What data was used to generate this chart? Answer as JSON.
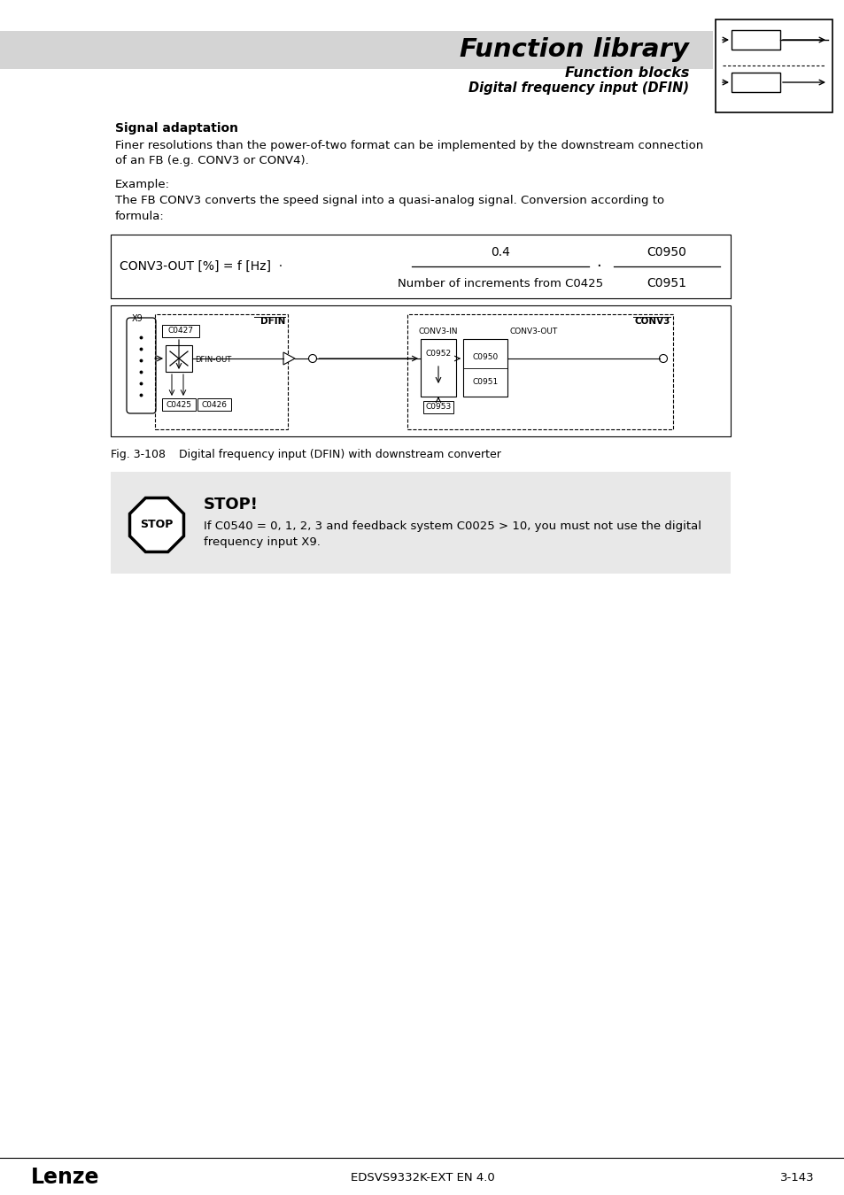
{
  "title": "Function library",
  "subtitle1": "Function blocks",
  "subtitle2": "Digital frequency input (DFIN)",
  "header_bg": "#d4d4d4",
  "page_bg": "#ffffff",
  "section_heading": "Signal adaptation",
  "para1": "Finer resolutions than the power-of-two format can be implemented by the downstream connection\nof an FB (e.g. CONV3 or CONV4).",
  "para2": "Example:",
  "para3": "The FB CONV3 converts the speed signal into a quasi-analog signal. Conversion according to\nformula:",
  "formula_lhs": "CONV3-OUT [%] = f [Hz]  ·",
  "formula_num": "0.4",
  "formula_den": "Number of increments from C0425",
  "formula_rhs_num": "C0950",
  "formula_rhs_den": "C0951",
  "fig_label": "Fig. 3-108",
  "fig_caption": "Digital frequency input (DFIN) with downstream converter",
  "stop_title": "STOP!",
  "stop_text": "If C0540 = 0, 1, 2, 3 and feedback system C0025 > 10, you must not use the digital\nfrequency input X9.",
  "footer_left": "Lenze",
  "footer_center": "EDSVS9332K-EXT EN 4.0",
  "footer_right": "3-143",
  "stop_bg": "#e8e8e8"
}
